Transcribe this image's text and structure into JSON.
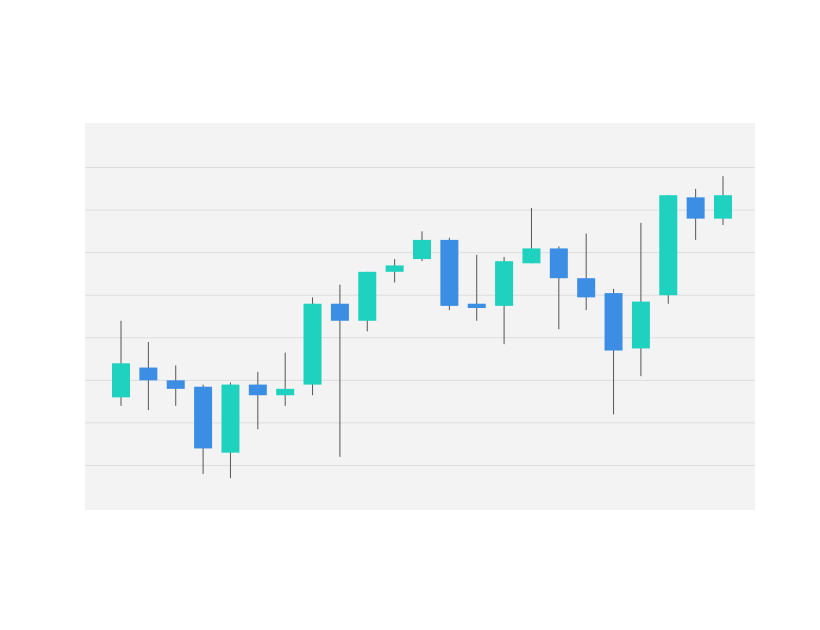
{
  "colors": {
    "page_background": "#ffffff",
    "plot_background": "#f3f3f3",
    "gridline": "#dedede",
    "increasing": "#1fd1bf",
    "decreasing": "#3b8ee4",
    "wick": "#555555"
  },
  "chart_data": {
    "type": "candlestick",
    "title": "",
    "xlabel": "",
    "ylabel": "",
    "grid": "horizontal",
    "legend": "none",
    "axis_tick_labels_visible": false,
    "ylim": [
      0,
      9
    ],
    "gridlines_at": [
      1,
      2,
      3,
      4,
      5,
      6,
      7,
      8
    ],
    "candles": [
      {
        "open": 2.6,
        "high": 4.4,
        "low": 2.4,
        "close": 3.4
      },
      {
        "open": 3.3,
        "high": 3.9,
        "low": 2.3,
        "close": 3.0
      },
      {
        "open": 3.0,
        "high": 3.35,
        "low": 2.4,
        "close": 2.8
      },
      {
        "open": 2.85,
        "high": 2.9,
        "low": 0.8,
        "close": 1.4
      },
      {
        "open": 1.3,
        "high": 2.95,
        "low": 0.7,
        "close": 2.9
      },
      {
        "open": 2.9,
        "high": 3.2,
        "low": 1.85,
        "close": 2.65
      },
      {
        "open": 2.65,
        "high": 3.65,
        "low": 2.4,
        "close": 2.8
      },
      {
        "open": 2.9,
        "high": 4.95,
        "low": 2.65,
        "close": 4.8
      },
      {
        "open": 4.8,
        "high": 5.25,
        "low": 1.2,
        "close": 4.4
      },
      {
        "open": 4.4,
        "high": 5.55,
        "low": 4.15,
        "close": 5.55
      },
      {
        "open": 5.55,
        "high": 5.85,
        "low": 5.3,
        "close": 5.7
      },
      {
        "open": 5.85,
        "high": 6.5,
        "low": 5.8,
        "close": 6.3
      },
      {
        "open": 6.3,
        "high": 6.35,
        "low": 4.65,
        "close": 4.75
      },
      {
        "open": 4.8,
        "high": 5.95,
        "low": 4.4,
        "close": 4.7
      },
      {
        "open": 4.75,
        "high": 5.9,
        "low": 3.85,
        "close": 5.8
      },
      {
        "open": 5.75,
        "high": 7.05,
        "low": 5.75,
        "close": 6.1
      },
      {
        "open": 6.1,
        "high": 6.15,
        "low": 4.2,
        "close": 5.4
      },
      {
        "open": 5.4,
        "high": 6.45,
        "low": 4.65,
        "close": 4.95
      },
      {
        "open": 5.05,
        "high": 5.15,
        "low": 2.2,
        "close": 3.7
      },
      {
        "open": 3.75,
        "high": 6.7,
        "low": 3.1,
        "close": 4.85
      },
      {
        "open": 5.0,
        "high": 7.35,
        "low": 4.8,
        "close": 7.35
      },
      {
        "open": 7.3,
        "high": 7.5,
        "low": 6.3,
        "close": 6.8
      },
      {
        "open": 6.8,
        "high": 7.8,
        "low": 6.65,
        "close": 7.35
      }
    ]
  }
}
